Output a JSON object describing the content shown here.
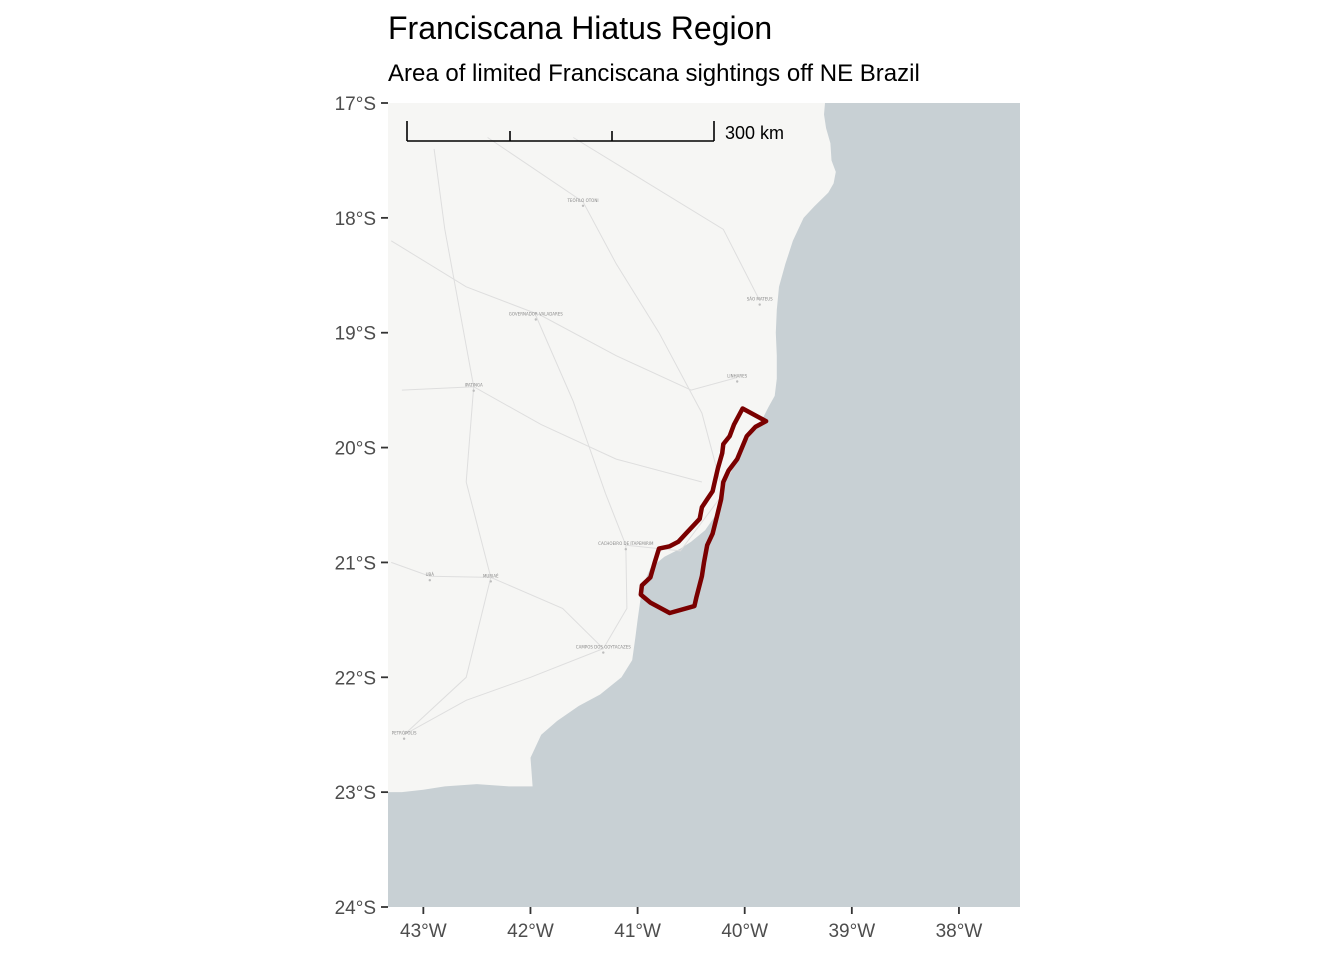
{
  "title": "Franciscana Hiatus Region",
  "subtitle": "Area of limited Franciscana sightings off NE Brazil",
  "colors": {
    "land": "#f6f6f4",
    "ocean": "#c8d0d4",
    "polygon_stroke": "#7a0000",
    "axis_text": "#4d4d4d",
    "roads": "#dedede"
  },
  "scale_bar": {
    "label": "300 km",
    "length_km": 300
  },
  "chart_data": {
    "type": "map",
    "title": "Franciscana Hiatus Region",
    "subtitle": "Area of limited Franciscana sightings off NE Brazil",
    "xlim": [
      -43.33,
      -37.43
    ],
    "ylim": [
      -24.0,
      -17.0
    ],
    "x_ticks": [
      {
        "value": -43,
        "label": "43°W"
      },
      {
        "value": -42,
        "label": "42°W"
      },
      {
        "value": -41,
        "label": "41°W"
      },
      {
        "value": -40,
        "label": "40°W"
      },
      {
        "value": -39,
        "label": "39°W"
      },
      {
        "value": -38,
        "label": "38°W"
      }
    ],
    "y_ticks": [
      {
        "value": -17,
        "label": "17°S"
      },
      {
        "value": -18,
        "label": "18°S"
      },
      {
        "value": -19,
        "label": "19°S"
      },
      {
        "value": -20,
        "label": "20°S"
      },
      {
        "value": -21,
        "label": "21°S"
      },
      {
        "value": -22,
        "label": "22°S"
      },
      {
        "value": -23,
        "label": "23°S"
      },
      {
        "value": -24,
        "label": "24°S"
      }
    ],
    "hiatus_polygon": [
      [
        -40.02,
        -19.66
      ],
      [
        -39.8,
        -19.77
      ],
      [
        -39.9,
        -19.82
      ],
      [
        -39.98,
        -19.9
      ],
      [
        -40.07,
        -20.1
      ],
      [
        -40.15,
        -20.2
      ],
      [
        -40.2,
        -20.3
      ],
      [
        -40.22,
        -20.45
      ],
      [
        -40.26,
        -20.6
      ],
      [
        -40.3,
        -20.75
      ],
      [
        -40.35,
        -20.85
      ],
      [
        -40.38,
        -21.0
      ],
      [
        -40.4,
        -21.12
      ],
      [
        -40.45,
        -21.3
      ],
      [
        -40.47,
        -21.38
      ],
      [
        -40.7,
        -21.44
      ],
      [
        -40.88,
        -21.35
      ],
      [
        -40.97,
        -21.28
      ],
      [
        -40.96,
        -21.2
      ],
      [
        -40.88,
        -21.13
      ],
      [
        -40.84,
        -21.0
      ],
      [
        -40.8,
        -20.88
      ],
      [
        -40.7,
        -20.86
      ],
      [
        -40.62,
        -20.82
      ],
      [
        -40.55,
        -20.75
      ],
      [
        -40.48,
        -20.68
      ],
      [
        -40.42,
        -20.62
      ],
      [
        -40.4,
        -20.52
      ],
      [
        -40.35,
        -20.45
      ],
      [
        -40.3,
        -20.38
      ],
      [
        -40.28,
        -20.3
      ],
      [
        -40.25,
        -20.18
      ],
      [
        -40.21,
        -20.05
      ],
      [
        -40.2,
        -19.97
      ],
      [
        -40.14,
        -19.9
      ],
      [
        -40.1,
        -19.8
      ]
    ],
    "coastline": [
      [
        -39.25,
        -17.0
      ],
      [
        -39.26,
        -17.1
      ],
      [
        -39.24,
        -17.22
      ],
      [
        -39.2,
        -17.35
      ],
      [
        -39.19,
        -17.5
      ],
      [
        -39.15,
        -17.6
      ],
      [
        -39.17,
        -17.7
      ],
      [
        -39.22,
        -17.78
      ],
      [
        -39.35,
        -17.9
      ],
      [
        -39.45,
        -18.0
      ],
      [
        -39.55,
        -18.2
      ],
      [
        -39.62,
        -18.4
      ],
      [
        -39.68,
        -18.6
      ],
      [
        -39.7,
        -18.8
      ],
      [
        -39.71,
        -19.0
      ],
      [
        -39.7,
        -19.2
      ],
      [
        -39.7,
        -19.4
      ],
      [
        -39.72,
        -19.55
      ],
      [
        -39.78,
        -19.65
      ],
      [
        -39.85,
        -19.78
      ],
      [
        -39.95,
        -19.9
      ],
      [
        -40.05,
        -20.05
      ],
      [
        -40.12,
        -20.2
      ],
      [
        -40.18,
        -20.3
      ],
      [
        -40.22,
        -20.45
      ],
      [
        -40.28,
        -20.6
      ],
      [
        -40.37,
        -20.72
      ],
      [
        -40.5,
        -20.82
      ],
      [
        -40.6,
        -20.88
      ],
      [
        -40.75,
        -20.95
      ],
      [
        -40.88,
        -21.05
      ],
      [
        -40.95,
        -21.2
      ],
      [
        -40.97,
        -21.3
      ],
      [
        -41.0,
        -21.5
      ],
      [
        -41.02,
        -21.65
      ],
      [
        -41.05,
        -21.85
      ],
      [
        -41.15,
        -22.0
      ],
      [
        -41.35,
        -22.15
      ],
      [
        -41.55,
        -22.25
      ],
      [
        -41.75,
        -22.38
      ],
      [
        -41.9,
        -22.5
      ],
      [
        -42.0,
        -22.7
      ],
      [
        -41.98,
        -22.95
      ],
      [
        -42.2,
        -22.95
      ],
      [
        -42.5,
        -22.93
      ],
      [
        -42.8,
        -22.95
      ],
      [
        -43.0,
        -22.98
      ],
      [
        -43.2,
        -23.0
      ],
      [
        -43.33,
        -23.0
      ]
    ],
    "place_labels": [
      {
        "text": "TEÓFILO OTONI",
        "lon": -41.51,
        "lat": -17.86
      },
      {
        "text": "GOVERNADOR VALADARES",
        "lon": -41.95,
        "lat": -18.85
      },
      {
        "text": "SÃO MATEUS",
        "lon": -39.86,
        "lat": -18.72
      },
      {
        "text": "LINHARES",
        "lon": -40.07,
        "lat": -19.39
      },
      {
        "text": "IPATINGA",
        "lon": -42.53,
        "lat": -19.47
      },
      {
        "text": "CACHOEIRO DE ITAPEMIRIM",
        "lon": -41.11,
        "lat": -20.85
      },
      {
        "text": "CAMPOS DOS GOYTACAZES",
        "lon": -41.32,
        "lat": -21.75
      },
      {
        "text": "UBÁ",
        "lon": -42.94,
        "lat": -21.12
      },
      {
        "text": "MURIAÉ",
        "lon": -42.37,
        "lat": -21.13
      },
      {
        "text": "PETRÓPOLIS",
        "lon": -43.18,
        "lat": -22.5
      }
    ]
  }
}
